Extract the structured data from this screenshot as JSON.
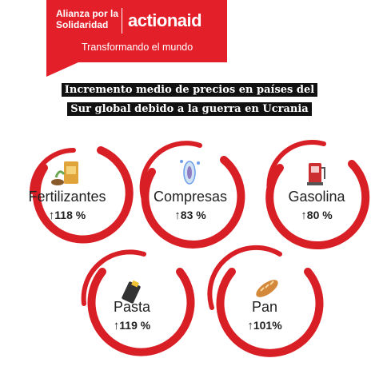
{
  "header": {
    "org": "Alianza por la Solidaridad",
    "brand": "actionaid",
    "tagline": "Transformando el mundo",
    "brand_color": "#e3202a"
  },
  "title": {
    "line1": "Incremento medio de precios en países del",
    "line2": "Sur global debido a la guerra en Ucrania"
  },
  "items": [
    {
      "label": "Fertilizantes",
      "value": "118 %",
      "icon": "fertilizer-icon"
    },
    {
      "label": "Compresas",
      "value": "83 %",
      "icon": "sanitary-pad-icon"
    },
    {
      "label": "Gasolina",
      "value": "80 %",
      "icon": "fuel-pump-icon"
    },
    {
      "label": "Pasta",
      "value": "119 %",
      "icon": "pasta-icon"
    },
    {
      "label": "Pan",
      "value": "101%",
      "icon": "bread-icon"
    }
  ],
  "arrow": "↑"
}
